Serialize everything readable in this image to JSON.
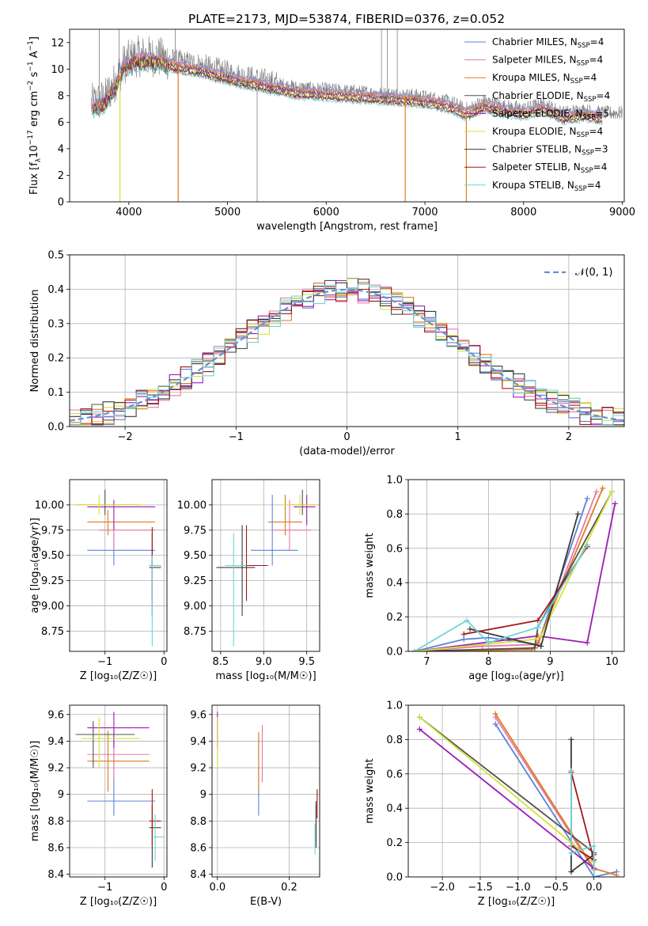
{
  "title": "PLATE=2173, MJD=53874, FIBERID=0376, z=0.052",
  "colors": {
    "Chabrier MILES": "#5b84d6",
    "Salpeter MILES": "#e57aa8",
    "Kroupa MILES": "#e07a1f",
    "Chabrier ELODIE": "#505050",
    "Salpeter ELODIE": "#9a1eb0",
    "Kroupa ELODIE": "#d8e03a",
    "Chabrier STELIB": "#3a3a3a",
    "Salpeter STELIB": "#a01818",
    "Kroupa STELIB": "#6fd3d6",
    "data": "#7f7f7f",
    "normal": "#6a8fd0"
  },
  "chart_data": [
    {
      "id": "spectrum",
      "type": "line",
      "xlabel": "wavelength [Angstrom, rest frame]",
      "ylabel_parts": [
        "Flux [f",
        "λ",
        "10",
        "−17",
        " erg cm",
        "−2",
        " s",
        "−1",
        " A",
        "−1",
        "]"
      ],
      "xlim": [
        3400,
        9020
      ],
      "ylim": [
        0,
        13
      ],
      "xticks": [
        4000,
        5000,
        6000,
        7000,
        8000,
        9000
      ],
      "yticks": [
        0,
        2,
        4,
        6,
        8,
        10,
        12
      ],
      "continuum_x": [
        3600,
        3680,
        3760,
        3850,
        3950,
        4050,
        4150,
        4300,
        4500,
        4700,
        4900,
        5100,
        5300,
        5500,
        5700,
        5900,
        6100,
        6300,
        6500,
        6700,
        6900,
        7000,
        7100,
        7200,
        7300,
        7400
      ],
      "continuum_y": [
        7.3,
        7.5,
        7.8,
        8.9,
        10.4,
        10.9,
        11.0,
        10.9,
        10.5,
        10.3,
        9.9,
        9.5,
        9.2,
        8.9,
        8.6,
        8.5,
        8.4,
        8.3,
        8.2,
        8.1,
        8.0,
        7.9,
        7.8,
        7.6,
        7.4,
        7.0
      ],
      "model_tail_x": [
        7450,
        7600,
        7800,
        8000,
        8200,
        8400,
        8600,
        8800
      ],
      "model_tail_y": [
        7.0,
        7.6,
        7.2,
        7.0,
        7.4,
        6.7,
        6.9,
        6.7
      ],
      "legend": [
        {
          "label": "Chabrier MILES, N",
          "sub": "SSP",
          "tail": "=4"
        },
        {
          "label": "Salpeter MILES, N",
          "sub": "SSP",
          "tail": "=4"
        },
        {
          "label": "Kroupa MILES, N",
          "sub": "SSP",
          "tail": "=4"
        },
        {
          "label": "Chabrier ELODIE, N",
          "sub": "SSP",
          "tail": "=4"
        },
        {
          "label": "Salpeter ELODIE, N",
          "sub": "SSP",
          "tail": "=5"
        },
        {
          "label": "Kroupa ELODIE, N",
          "sub": "SSP",
          "tail": "=4"
        },
        {
          "label": "Chabrier STELIB, N",
          "sub": "SSP",
          "tail": "=3"
        },
        {
          "label": "Salpeter STELIB, N",
          "sub": "SSP",
          "tail": "=4"
        },
        {
          "label": "Kroupa STELIB, N",
          "sub": "SSP",
          "tail": "=4"
        }
      ]
    },
    {
      "id": "residuals",
      "type": "area",
      "xlabel": "(data-model)/error",
      "ylabel": "Normed distribution",
      "xlim": [
        -2.5,
        2.5
      ],
      "ylim": [
        0,
        0.5
      ],
      "xticks": [
        -2,
        -1,
        0,
        1,
        2
      ],
      "ytick_labels": [
        "0.0",
        "0.1",
        "0.2",
        "0.3",
        "0.4",
        "0.5"
      ],
      "legend_label": "𝒩(0, 1)",
      "bin_width": 0.1,
      "bin_start": -2.5
    },
    {
      "id": "age_vs_Z",
      "type": "scatter",
      "xlabel": "Z [log₁₀(Z/Z☉)]",
      "ylabel": "age  [log₁₀(age/yr)]",
      "xlim": [
        -1.6,
        0.05
      ],
      "ylim": [
        8.55,
        10.25
      ],
      "xticks": [
        -1,
        0
      ],
      "yticks": [
        8.75,
        9.0,
        9.25,
        9.5,
        9.75,
        10.0
      ],
      "ytick_labels": [
        "8.75",
        "9.00",
        "9.25",
        "9.50",
        "9.75",
        "10.00"
      ]
    },
    {
      "id": "age_vs_mass",
      "type": "scatter",
      "xlabel": "mass [log₁₀(M/M☉)]",
      "xlim": [
        8.4,
        9.65
      ],
      "ylim": [
        8.55,
        10.25
      ],
      "xticks": [
        8.5,
        9.0,
        9.5
      ],
      "xtick_labels": [
        "8.5",
        "9.0",
        "9.5"
      ],
      "yticks": [
        8.75,
        9.0,
        9.25,
        9.5,
        9.75,
        10.0
      ],
      "ytick_labels": [
        "8.75",
        "9.00",
        "9.25",
        "9.50",
        "9.75",
        "10.00"
      ]
    },
    {
      "id": "weight_vs_age",
      "type": "line",
      "xlabel": "age  [log₁₀(age/yr)]",
      "ylabel": "mass weight",
      "xlim": [
        6.7,
        10.2
      ],
      "ylim": [
        0,
        1.0
      ],
      "xticks": [
        7,
        8,
        9,
        10
      ],
      "ytick_labels": [
        "0.0",
        "0.2",
        "0.4",
        "0.6",
        "0.8",
        "1.0"
      ],
      "series": [
        {
          "key": "Chabrier MILES",
          "x": [
            6.8,
            7.6,
            8.0,
            8.8,
            9.6
          ],
          "y": [
            0.0,
            0.07,
            0.08,
            0.04,
            0.89
          ]
        },
        {
          "key": "Salpeter MILES",
          "x": [
            6.8,
            7.9,
            8.8,
            9.75
          ],
          "y": [
            0.0,
            0.03,
            0.04,
            0.93
          ]
        },
        {
          "key": "Kroupa MILES",
          "x": [
            6.8,
            8.7,
            8.8,
            9.85
          ],
          "y": [
            0.0,
            0.01,
            0.05,
            0.95
          ]
        },
        {
          "key": "Chabrier ELODIE",
          "x": [
            6.8,
            8.75,
            8.8,
            10.0
          ],
          "y": [
            0.0,
            0.02,
            0.14,
            0.93
          ]
        },
        {
          "key": "Salpeter ELODIE",
          "x": [
            6.8,
            8.8,
            9.6,
            10.05
          ],
          "y": [
            0.0,
            0.09,
            0.05,
            0.86
          ]
        },
        {
          "key": "Kroupa ELODIE",
          "x": [
            6.8,
            8.75,
            8.85,
            10.0
          ],
          "y": [
            0.0,
            0.07,
            0.09,
            0.93
          ]
        },
        {
          "key": "Chabrier STELIB",
          "x": [
            7.7,
            8.85,
            9.45
          ],
          "y": [
            0.13,
            0.03,
            0.8
          ]
        },
        {
          "key": "Salpeter STELIB",
          "x": [
            7.6,
            8.8,
            9.6
          ],
          "y": [
            0.1,
            0.18,
            0.61
          ]
        },
        {
          "key": "Kroupa STELIB",
          "x": [
            6.8,
            7.65,
            8.0,
            8.8,
            9.6
          ],
          "y": [
            0.0,
            0.18,
            0.05,
            0.14,
            0.62
          ]
        }
      ]
    },
    {
      "id": "mass_vs_Z",
      "type": "scatter",
      "xlabel": "Z [log₁₀(Z/Z☉)]",
      "ylabel": "mass [log₁₀(M/M☉)]",
      "xlim": [
        -1.6,
        0.05
      ],
      "ylim": [
        8.38,
        9.67
      ],
      "xticks": [
        -1,
        0
      ],
      "yticks": [
        8.4,
        8.6,
        8.8,
        9.0,
        9.2,
        9.4,
        9.6
      ]
    },
    {
      "id": "mass_vs_EBV",
      "type": "scatter",
      "xlabel": "E(B-V)",
      "xlim": [
        -0.015,
        0.285
      ],
      "ylim": [
        8.38,
        9.67
      ],
      "xticks": [
        0.0,
        0.2
      ],
      "xtick_labels": [
        "0.0",
        "0.2"
      ],
      "yticks": [
        8.4,
        8.6,
        8.8,
        9.0,
        9.2,
        9.4,
        9.6
      ],
      "points": [
        {
          "key": "Chabrier MILES",
          "x": 0.115,
          "y": 9.1,
          "ylo": 8.84,
          "yhi": 9.45
        },
        {
          "key": "Salpeter MILES",
          "x": 0.125,
          "y": 9.3,
          "ylo": 9.09,
          "yhi": 9.52
        },
        {
          "key": "Kroupa MILES",
          "x": 0.115,
          "y": 9.25,
          "ylo": 9.02,
          "yhi": 9.47
        },
        {
          "key": "Chabrier ELODIE",
          "x": 0.275,
          "y": 8.75,
          "ylo": 8.6,
          "yhi": 8.95
        },
        {
          "key": "Salpeter ELODIE",
          "x": 0.0,
          "y": 9.5,
          "ylo": 9.35,
          "yhi": 9.62
        },
        {
          "key": "Kroupa ELODIE",
          "x": 0.0,
          "y": 9.42,
          "ylo": 9.2,
          "yhi": 9.58
        },
        {
          "key": "Chabrier STELIB",
          "x": 0.275,
          "y": 8.75,
          "ylo": 8.6,
          "yhi": 8.92
        },
        {
          "key": "Salpeter STELIB",
          "x": 0.278,
          "y": 8.93,
          "ylo": 8.82,
          "yhi": 9.04
        },
        {
          "key": "Kroupa STELIB",
          "x": 0.272,
          "y": 8.65,
          "ylo": 8.55,
          "yhi": 8.78
        }
      ]
    },
    {
      "id": "weight_vs_Z",
      "type": "line",
      "xlabel": "Z [log₁₀(Z/Z☉)]",
      "ylabel": "mass weight",
      "xlim": [
        -2.45,
        0.4
      ],
      "ylim": [
        0,
        1.0
      ],
      "xticks": [
        -2.0,
        -1.5,
        -1.0,
        -0.5,
        0.0
      ],
      "xtick_labels": [
        "−2.0",
        "−1.5",
        "−1.0",
        "−0.5",
        "0.0"
      ],
      "ytick_labels": [
        "0.0",
        "0.2",
        "0.4",
        "0.6",
        "0.8",
        "1.0"
      ],
      "series": [
        {
          "key": "Chabrier MILES",
          "x": [
            -1.3,
            0.0,
            0.3
          ],
          "y": [
            0.89,
            0.0,
            0.03
          ]
        },
        {
          "key": "Salpeter MILES",
          "x": [
            -1.3,
            0.0
          ],
          "y": [
            0.93,
            0.04
          ]
        },
        {
          "key": "Kroupa MILES",
          "x": [
            -1.3,
            0.0,
            0.3
          ],
          "y": [
            0.95,
            0.05,
            0.01
          ]
        },
        {
          "key": "Chabrier ELODIE",
          "x": [
            -2.3,
            0.0
          ],
          "y": [
            0.93,
            0.14
          ]
        },
        {
          "key": "Salpeter ELODIE",
          "x": [
            -2.3,
            0.0,
            0.0
          ],
          "y": [
            0.86,
            0.05,
            0.09
          ]
        },
        {
          "key": "Kroupa ELODIE",
          "x": [
            -2.3,
            0.0
          ],
          "y": [
            0.93,
            0.09
          ]
        },
        {
          "key": "Chabrier STELIB",
          "x": [
            -0.3,
            -0.3,
            0.0
          ],
          "y": [
            0.8,
            0.03,
            0.13
          ]
        },
        {
          "key": "Salpeter STELIB",
          "x": [
            -0.3,
            0.0,
            -0.3
          ],
          "y": [
            0.61,
            0.1,
            0.18
          ]
        },
        {
          "key": "Kroupa STELIB",
          "x": [
            -0.3,
            -0.3,
            0.0,
            0.0
          ],
          "y": [
            0.62,
            0.14,
            0.18,
            0.0
          ]
        }
      ]
    }
  ],
  "age_Z_points": [
    {
      "key": "Chabrier MILES",
      "x": -0.85,
      "y": 9.55,
      "xlo": -1.3,
      "xhi": -0.15,
      "ylo": 9.4,
      "yhi": 9.73
    },
    {
      "key": "Salpeter MILES",
      "x": -0.85,
      "y": 9.75,
      "xlo": -1.1,
      "xhi": -0.15,
      "ylo": 9.55,
      "yhi": 9.85
    },
    {
      "key": "Kroupa MILES",
      "x": -0.95,
      "y": 9.83,
      "xlo": -1.3,
      "xhi": -0.15,
      "ylo": 9.7,
      "yhi": 9.95
    },
    {
      "key": "Chabrier ELODIE",
      "x": -1.0,
      "y": 10.0,
      "xlo": -1.5,
      "xhi": -0.4,
      "ylo": 9.9,
      "yhi": 10.15
    },
    {
      "key": "Salpeter ELODIE",
      "x": -0.85,
      "y": 9.98,
      "xlo": -1.3,
      "xhi": -0.15,
      "ylo": 9.75,
      "yhi": 10.05
    },
    {
      "key": "Kroupa ELODIE",
      "x": -1.1,
      "y": 10.0,
      "xlo": -1.5,
      "xhi": -0.3,
      "ylo": 9.9,
      "yhi": 10.1
    },
    {
      "key": "Chabrier STELIB",
      "x": -0.2,
      "y": 9.38,
      "xlo": -0.25,
      "xhi": -0.05,
      "ylo": 8.9,
      "yhi": 9.72
    },
    {
      "key": "Salpeter STELIB",
      "x": -0.2,
      "y": 9.4,
      "xlo": -0.25,
      "xhi": -0.05,
      "ylo": 9.05,
      "yhi": 9.78
    },
    {
      "key": "Kroupa STELIB",
      "x": -0.2,
      "y": 9.4,
      "xlo": -0.25,
      "xhi": -0.05,
      "ylo": 8.6,
      "yhi": 9.5
    }
  ],
  "age_mass_points": [
    {
      "key": "Chabrier MILES",
      "x": 9.1,
      "y": 9.55,
      "xlo": 8.85,
      "xhi": 9.4,
      "ylo": 9.4,
      "yhi": 10.1
    },
    {
      "key": "Salpeter MILES",
      "x": 9.3,
      "y": 9.75,
      "xlo": 9.1,
      "xhi": 9.55,
      "ylo": 9.55,
      "yhi": 10.05
    },
    {
      "key": "Kroupa MILES",
      "x": 9.25,
      "y": 9.83,
      "xlo": 9.05,
      "xhi": 9.45,
      "ylo": 9.7,
      "yhi": 10.1
    },
    {
      "key": "Chabrier ELODIE",
      "x": 9.45,
      "y": 10.0,
      "xlo": 9.3,
      "xhi": 9.6,
      "ylo": 9.9,
      "yhi": 10.15
    },
    {
      "key": "Salpeter ELODIE",
      "x": 9.5,
      "y": 9.98,
      "xlo": 9.35,
      "xhi": 9.6,
      "ylo": 9.8,
      "yhi": 10.1
    },
    {
      "key": "Kroupa ELODIE",
      "x": 9.42,
      "y": 10.0,
      "xlo": 9.2,
      "xhi": 9.6,
      "ylo": 9.9,
      "yhi": 10.1
    },
    {
      "key": "Chabrier STELIB",
      "x": 8.75,
      "y": 9.38,
      "xlo": 8.45,
      "xhi": 8.9,
      "ylo": 8.9,
      "yhi": 9.8
    },
    {
      "key": "Salpeter STELIB",
      "x": 8.8,
      "y": 9.4,
      "xlo": 8.6,
      "xhi": 9.05,
      "ylo": 9.05,
      "yhi": 9.8
    },
    {
      "key": "Kroupa STELIB",
      "x": 8.65,
      "y": 9.4,
      "xlo": 8.55,
      "xhi": 8.8,
      "ylo": 8.6,
      "yhi": 9.72
    }
  ],
  "mass_Z_points": [
    {
      "key": "Chabrier MILES",
      "x": -0.85,
      "y": 8.95,
      "xlo": -1.3,
      "xhi": -0.15,
      "ylo": 8.84,
      "yhi": 9.4
    },
    {
      "key": "Salpeter MILES",
      "x": -0.85,
      "y": 9.3,
      "xlo": -1.3,
      "xhi": -0.25,
      "ylo": 9.1,
      "yhi": 9.5
    },
    {
      "key": "Kroupa MILES",
      "x": -0.95,
      "y": 9.25,
      "xlo": -1.3,
      "xhi": -0.25,
      "ylo": 9.02,
      "yhi": 9.48
    },
    {
      "key": "Chabrier ELODIE",
      "x": -1.2,
      "y": 9.45,
      "xlo": -1.5,
      "xhi": -0.5,
      "ylo": 9.2,
      "yhi": 9.55
    },
    {
      "key": "Salpeter ELODIE",
      "x": -0.85,
      "y": 9.5,
      "xlo": -1.3,
      "xhi": -0.25,
      "ylo": 9.35,
      "yhi": 9.62
    },
    {
      "key": "Kroupa ELODIE",
      "x": -1.1,
      "y": 9.42,
      "xlo": -1.4,
      "xhi": -0.4,
      "ylo": 9.2,
      "yhi": 9.58
    },
    {
      "key": "Chabrier STELIB",
      "x": -0.2,
      "y": 8.75,
      "xlo": -0.25,
      "xhi": -0.05,
      "ylo": 8.45,
      "yhi": 8.92
    },
    {
      "key": "Salpeter STELIB",
      "x": -0.2,
      "y": 8.8,
      "xlo": -0.25,
      "xhi": -0.05,
      "ylo": 8.62,
      "yhi": 9.04
    },
    {
      "key": "Kroupa STELIB",
      "x": -0.15,
      "y": 8.68,
      "xlo": -0.2,
      "xhi": 0.0,
      "ylo": 8.5,
      "yhi": 8.85
    }
  ]
}
